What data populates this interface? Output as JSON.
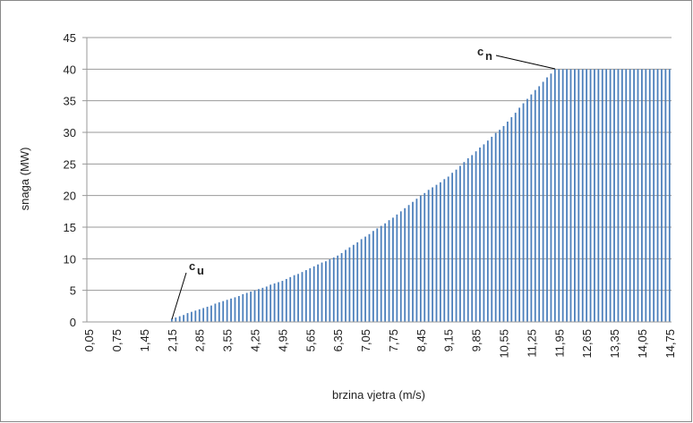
{
  "chart_data": {
    "type": "bar",
    "x_label": "brzina vjetra (m/s)",
    "y_label": "snaga (MW)",
    "categories": [
      "0,05",
      null,
      null,
      null,
      null,
      null,
      null,
      "0,75",
      null,
      null,
      null,
      null,
      null,
      null,
      "1,45",
      null,
      null,
      null,
      null,
      null,
      null,
      "2,15",
      null,
      null,
      null,
      null,
      null,
      null,
      "2,85",
      null,
      null,
      null,
      null,
      null,
      null,
      "3,55",
      null,
      null,
      null,
      null,
      null,
      null,
      "4,25",
      null,
      null,
      null,
      null,
      null,
      null,
      "4,95",
      null,
      null,
      null,
      null,
      null,
      null,
      "5,65",
      null,
      null,
      null,
      null,
      null,
      null,
      "6,35",
      null,
      null,
      null,
      null,
      null,
      null,
      "7,05",
      null,
      null,
      null,
      null,
      null,
      null,
      "7,75",
      null,
      null,
      null,
      null,
      null,
      null,
      "8,45",
      null,
      null,
      null,
      null,
      null,
      null,
      "9,15",
      null,
      null,
      null,
      null,
      null,
      null,
      "9,85",
      null,
      null,
      null,
      null,
      null,
      null,
      "10,55",
      null,
      null,
      null,
      null,
      null,
      null,
      "11,25",
      null,
      null,
      null,
      null,
      null,
      null,
      "11,95",
      null,
      null,
      null,
      null,
      null,
      null,
      "12,65",
      null,
      null,
      null,
      null,
      null,
      null,
      "13,35",
      null,
      null,
      null,
      null,
      null,
      null,
      "14,05",
      null,
      null,
      null,
      null,
      null,
      null,
      "14,75"
    ],
    "values": [
      0,
      0,
      0,
      0,
      0,
      0,
      0,
      0,
      0,
      0,
      0,
      0,
      0,
      0,
      0,
      0,
      0,
      0,
      0,
      0,
      0,
      0.5,
      0.7,
      0.9,
      1.1,
      1.4,
      1.6,
      1.8,
      2.0,
      2.2,
      2.4,
      2.6,
      2.9,
      3.1,
      3.3,
      3.5,
      3.7,
      3.9,
      4.1,
      4.4,
      4.6,
      4.8,
      5.0,
      5.2,
      5.4,
      5.6,
      5.9,
      6.1,
      6.3,
      6.5,
      6.8,
      7.1,
      7.4,
      7.6,
      7.9,
      8.2,
      8.5,
      8.8,
      9.1,
      9.4,
      9.6,
      9.9,
      10.2,
      10.5,
      10.9,
      11.4,
      11.8,
      12.2,
      12.6,
      13.1,
      13.5,
      13.9,
      14.4,
      14.8,
      15.2,
      15.6,
      16.1,
      16.5,
      17,
      17.5,
      18,
      18.5,
      19,
      19.5,
      20,
      20.4,
      20.9,
      21.3,
      21.7,
      22.1,
      22.6,
      23,
      23.6,
      24.1,
      24.7,
      25.3,
      25.9,
      26.4,
      27,
      27.6,
      28.1,
      28.7,
      29.3,
      29.9,
      30.4,
      31,
      31.7,
      32.4,
      33.1,
      33.9,
      34.6,
      35.3,
      36,
      36.7,
      37.3,
      38,
      38.7,
      39.3,
      40,
      40,
      40,
      40,
      40,
      40,
      40,
      40,
      40,
      40,
      40,
      40,
      40,
      40,
      40,
      40,
      40,
      40,
      40,
      40,
      40,
      40,
      40,
      40,
      40,
      40,
      40,
      40,
      40,
      40
    ],
    "color": "#4a7ebb",
    "ylim": [
      0,
      45
    ],
    "yticks": [
      0,
      5,
      10,
      15,
      20,
      25,
      30,
      35,
      40,
      45
    ],
    "grid": true,
    "annotations": [
      {
        "text": "c",
        "sub": "u"
      },
      {
        "text": "c",
        "sub": "n"
      }
    ]
  }
}
